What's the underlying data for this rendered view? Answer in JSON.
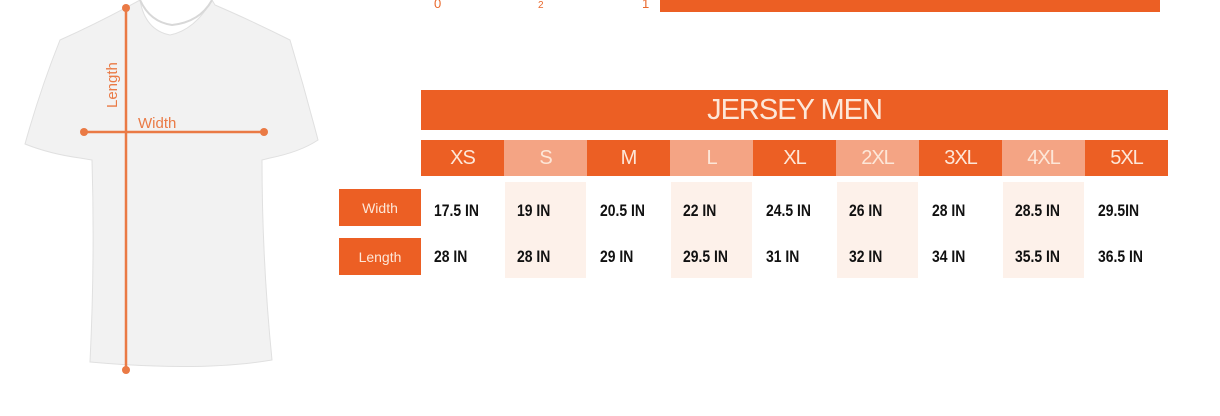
{
  "top_partial": {
    "ticks": [
      "0",
      "2",
      "1"
    ]
  },
  "diagram": {
    "length_label": "Length",
    "width_label": "Width"
  },
  "table": {
    "title": "JERSEY MEN",
    "sizes": [
      "XS",
      "S",
      "M",
      "L",
      "XL",
      "2XL",
      "3XL",
      "4XL",
      "5XL"
    ],
    "rows": [
      {
        "label": "Width",
        "values": [
          "17.5 IN",
          "19 IN",
          "20.5 IN",
          "22 IN",
          "24.5 IN",
          "26 IN",
          "28 IN",
          "28.5 IN",
          "29.5IN"
        ]
      },
      {
        "label": "Length",
        "values": [
          "28 IN",
          "28 IN",
          "29 IN",
          "29.5 IN",
          "31 IN",
          "32 IN",
          "34 IN",
          "35.5 IN",
          "36.5 IN"
        ]
      }
    ]
  },
  "colors": {
    "accent": "#ec5f24",
    "accent_light": "#f4a484",
    "stripe": "#fdf1ea"
  }
}
